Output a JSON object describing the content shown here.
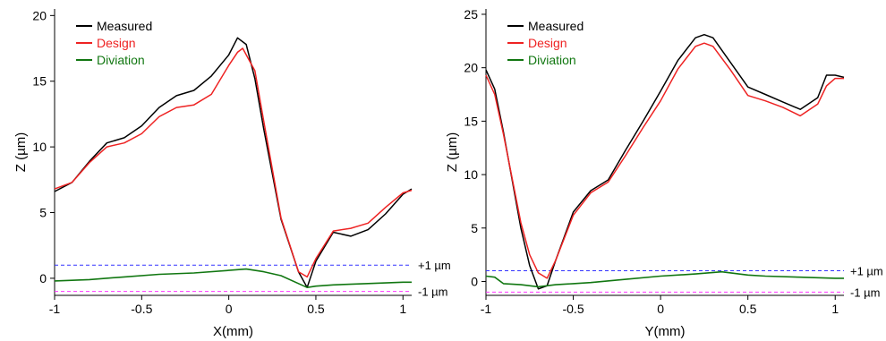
{
  "chart_data": [
    {
      "type": "line",
      "xlabel": "X(mm)",
      "ylabel": "Z (µm)",
      "xlim": [
        -1,
        1.05
      ],
      "ylim": [
        -1.3,
        20.5
      ],
      "xticks": [
        -1,
        -0.5,
        0,
        0.5,
        1
      ],
      "xtick_labels": [
        "-1",
        "-0.5",
        "0",
        "0.5",
        "1"
      ],
      "yticks": [
        0,
        5,
        10,
        15,
        20
      ],
      "ytick_labels": [
        "0",
        "5",
        "10",
        "15",
        "20"
      ],
      "legend": "top-left",
      "reference_lines": [
        {
          "y": 1,
          "label": "+1 µm",
          "color": "#3333ff"
        },
        {
          "y": -1,
          "label": "-1 µm",
          "color": "#ff33ff"
        }
      ],
      "series": [
        {
          "name": "Measured",
          "color": "#000000",
          "x": [
            -1.0,
            -0.9,
            -0.8,
            -0.7,
            -0.6,
            -0.5,
            -0.4,
            -0.3,
            -0.2,
            -0.1,
            0.0,
            0.05,
            0.1,
            0.15,
            0.2,
            0.3,
            0.4,
            0.45,
            0.5,
            0.6,
            0.7,
            0.8,
            0.9,
            1.0,
            1.05
          ],
          "y": [
            6.6,
            7.3,
            8.9,
            10.3,
            10.7,
            11.6,
            13.0,
            13.9,
            14.3,
            15.4,
            17.0,
            18.3,
            17.8,
            15.2,
            11.4,
            4.5,
            0.5,
            -0.7,
            1.3,
            3.5,
            3.2,
            3.7,
            4.9,
            6.4,
            6.8
          ]
        },
        {
          "name": "Design",
          "color": "#ee2222",
          "x": [
            -1.0,
            -0.9,
            -0.8,
            -0.7,
            -0.6,
            -0.5,
            -0.4,
            -0.3,
            -0.2,
            -0.1,
            0.0,
            0.05,
            0.08,
            0.15,
            0.2,
            0.3,
            0.4,
            0.45,
            0.5,
            0.6,
            0.7,
            0.8,
            0.9,
            1.0,
            1.05
          ],
          "y": [
            6.8,
            7.3,
            8.8,
            10.0,
            10.3,
            11.0,
            12.3,
            13.0,
            13.2,
            14.0,
            16.2,
            17.2,
            17.5,
            15.8,
            12.0,
            4.6,
            0.5,
            0.1,
            1.5,
            3.6,
            3.8,
            4.2,
            5.4,
            6.5,
            6.7
          ]
        },
        {
          "name": "Diviation",
          "color": "#117711",
          "x": [
            -1.0,
            -0.8,
            -0.6,
            -0.4,
            -0.2,
            0.0,
            0.1,
            0.2,
            0.3,
            0.4,
            0.45,
            0.5,
            0.6,
            0.8,
            1.0,
            1.05
          ],
          "y": [
            -0.2,
            -0.1,
            0.1,
            0.3,
            0.4,
            0.6,
            0.7,
            0.5,
            0.2,
            -0.4,
            -0.7,
            -0.6,
            -0.5,
            -0.4,
            -0.3,
            -0.3
          ]
        }
      ]
    },
    {
      "type": "line",
      "xlabel": "Y(mm)",
      "ylabel": "Z (µm)",
      "xlim": [
        -1,
        1.05
      ],
      "ylim": [
        -1.3,
        25.5
      ],
      "xticks": [
        -1,
        -0.5,
        0,
        0.5,
        1
      ],
      "xtick_labels": [
        "-1",
        "-0.5",
        "0",
        "0.5",
        "1"
      ],
      "yticks": [
        0,
        5,
        10,
        15,
        20,
        25
      ],
      "ytick_labels": [
        "0",
        "5",
        "10",
        "15",
        "20",
        "25"
      ],
      "legend": "top-left",
      "reference_lines": [
        {
          "y": 1,
          "label": "+1 µm",
          "color": "#3333ff"
        },
        {
          "y": -1,
          "label": "-1 µm",
          "color": "#ff33ff"
        }
      ],
      "series": [
        {
          "name": "Measured",
          "color": "#000000",
          "x": [
            -1.0,
            -0.95,
            -0.9,
            -0.8,
            -0.75,
            -0.7,
            -0.65,
            -0.6,
            -0.5,
            -0.4,
            -0.3,
            -0.2,
            -0.1,
            0.0,
            0.1,
            0.2,
            0.25,
            0.3,
            0.4,
            0.5,
            0.6,
            0.7,
            0.8,
            0.9,
            0.95,
            1.0,
            1.05
          ],
          "y": [
            19.8,
            18.0,
            14.0,
            5.0,
            1.5,
            -0.7,
            -0.4,
            2.0,
            6.5,
            8.5,
            9.5,
            12.3,
            15.0,
            17.8,
            20.7,
            22.8,
            23.1,
            22.8,
            20.5,
            18.2,
            17.5,
            16.8,
            16.1,
            17.2,
            19.3,
            19.3,
            19.1
          ]
        },
        {
          "name": "Design",
          "color": "#ee2222",
          "x": [
            -1.0,
            -0.95,
            -0.9,
            -0.8,
            -0.75,
            -0.7,
            -0.65,
            -0.6,
            -0.5,
            -0.4,
            -0.3,
            -0.2,
            -0.1,
            0.0,
            0.1,
            0.2,
            0.25,
            0.3,
            0.4,
            0.5,
            0.6,
            0.7,
            0.8,
            0.9,
            0.95,
            1.0,
            1.05
          ],
          "y": [
            19.3,
            17.5,
            13.8,
            5.5,
            2.5,
            0.8,
            0.3,
            2.0,
            6.2,
            8.3,
            9.3,
            11.8,
            14.4,
            16.9,
            19.9,
            22.0,
            22.3,
            22.0,
            19.8,
            17.4,
            16.9,
            16.3,
            15.5,
            16.6,
            18.3,
            19.0,
            19.0
          ]
        },
        {
          "name": "Diviation",
          "color": "#117711",
          "x": [
            -1.0,
            -0.95,
            -0.9,
            -0.8,
            -0.7,
            -0.6,
            -0.5,
            -0.4,
            -0.2,
            0.0,
            0.2,
            0.35,
            0.5,
            0.6,
            0.8,
            1.0,
            1.05
          ],
          "y": [
            0.5,
            0.4,
            -0.2,
            -0.3,
            -0.5,
            -0.3,
            -0.2,
            -0.1,
            0.2,
            0.5,
            0.7,
            0.9,
            0.6,
            0.5,
            0.4,
            0.3,
            0.3
          ]
        }
      ]
    }
  ]
}
